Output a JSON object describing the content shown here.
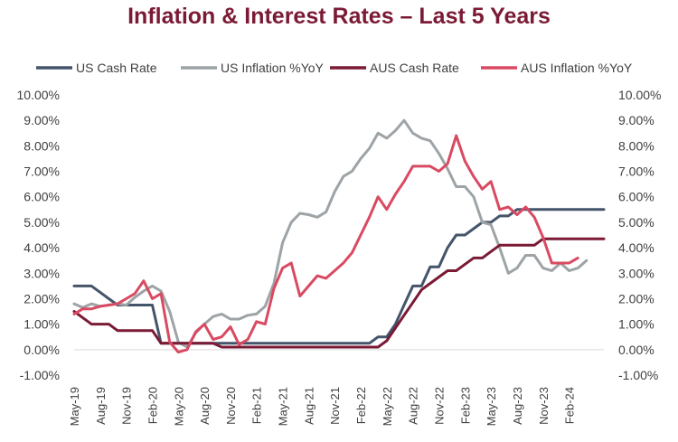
{
  "colors": {
    "title": "#7b1a35",
    "us_cash": "#44546a",
    "us_infl": "#9da3a6",
    "aus_cash": "#7b1a35",
    "aus_infl": "#d94a62",
    "grid": "#d9d9d9",
    "text": "#404040"
  },
  "chart_data": {
    "type": "line",
    "title": "Inflation & Interest Rates – Last 5 Years",
    "ylim": [
      -1,
      10
    ],
    "y_ticks": [
      "-1.00%",
      "0.00%",
      "1.00%",
      "2.00%",
      "3.00%",
      "4.00%",
      "5.00%",
      "6.00%",
      "7.00%",
      "8.00%",
      "9.00%",
      "10.00%"
    ],
    "x_ticks": [
      "May-19",
      "Aug-19",
      "Nov-19",
      "Feb-20",
      "May-20",
      "Aug-20",
      "Nov-20",
      "Feb-21",
      "May-21",
      "Aug-21",
      "Nov-21",
      "Feb-22",
      "May-22",
      "Aug-22",
      "Nov-22",
      "Feb-23",
      "May-23",
      "Aug-23",
      "Nov-23",
      "Feb-24"
    ],
    "x_tick_index": [
      0,
      3,
      6,
      9,
      12,
      15,
      18,
      21,
      24,
      27,
      30,
      33,
      36,
      39,
      42,
      45,
      48,
      51,
      54,
      57
    ],
    "series": [
      {
        "name": "US Cash Rate",
        "color_key": "us_cash",
        "values": [
          2.5,
          2.5,
          2.5,
          2.25,
          2.0,
          1.75,
          1.75,
          1.75,
          1.75,
          1.75,
          0.25,
          0.25,
          0.25,
          0.25,
          0.25,
          0.25,
          0.25,
          0.25,
          0.25,
          0.25,
          0.25,
          0.25,
          0.25,
          0.25,
          0.25,
          0.25,
          0.25,
          0.25,
          0.25,
          0.25,
          0.25,
          0.25,
          0.25,
          0.25,
          0.25,
          0.5,
          0.5,
          1.0,
          1.75,
          2.5,
          2.5,
          3.25,
          3.25,
          4.0,
          4.5,
          4.5,
          4.75,
          5.0,
          5.0,
          5.25,
          5.25,
          5.5,
          5.5,
          5.5,
          5.5,
          5.5,
          5.5,
          5.5,
          5.5,
          5.5,
          5.5,
          5.5
        ]
      },
      {
        "name": "US Inflation %YoY",
        "color_key": "us_infl",
        "values": [
          1.8,
          1.65,
          1.8,
          1.7,
          1.75,
          1.8,
          1.75,
          2.05,
          2.3,
          2.5,
          2.3,
          1.5,
          0.3,
          0.1,
          0.65,
          1.0,
          1.3,
          1.4,
          1.2,
          1.2,
          1.35,
          1.4,
          1.7,
          2.6,
          4.2,
          5.0,
          5.35,
          5.3,
          5.2,
          5.4,
          6.2,
          6.8,
          7.0,
          7.5,
          7.9,
          8.5,
          8.3,
          8.6,
          9.0,
          8.5,
          8.3,
          8.2,
          7.7,
          7.1,
          6.4,
          6.4,
          6.0,
          5.0,
          4.9,
          4.0,
          3.0,
          3.2,
          3.7,
          3.7,
          3.2,
          3.1,
          3.4,
          3.1,
          3.2,
          3.5
        ]
      },
      {
        "name": "AUS Cash Rate",
        "color_key": "aus_cash",
        "values": [
          1.5,
          1.25,
          1.0,
          1.0,
          1.0,
          0.75,
          0.75,
          0.75,
          0.75,
          0.75,
          0.25,
          0.25,
          0.25,
          0.25,
          0.25,
          0.25,
          0.25,
          0.1,
          0.1,
          0.1,
          0.1,
          0.1,
          0.1,
          0.1,
          0.1,
          0.1,
          0.1,
          0.1,
          0.1,
          0.1,
          0.1,
          0.1,
          0.1,
          0.1,
          0.1,
          0.1,
          0.35,
          0.85,
          1.35,
          1.85,
          2.35,
          2.6,
          2.85,
          3.1,
          3.1,
          3.35,
          3.6,
          3.6,
          3.85,
          4.1,
          4.1,
          4.1,
          4.1,
          4.1,
          4.35,
          4.35,
          4.35,
          4.35,
          4.35,
          4.35,
          4.35,
          4.35
        ]
      },
      {
        "name": "AUS Inflation %YoY",
        "color_key": "aus_infl",
        "values": [
          1.4,
          1.6,
          1.6,
          1.7,
          1.75,
          1.8,
          2.0,
          2.2,
          2.7,
          2.0,
          2.2,
          0.3,
          -0.1,
          0.0,
          0.7,
          1.0,
          0.4,
          0.5,
          0.9,
          0.2,
          0.4,
          1.1,
          1.0,
          2.4,
          3.2,
          3.4,
          2.1,
          2.5,
          2.9,
          2.8,
          3.1,
          3.4,
          3.8,
          4.5,
          5.2,
          6.0,
          5.5,
          6.1,
          6.6,
          7.2,
          7.2,
          7.2,
          7.0,
          7.3,
          8.4,
          7.4,
          6.8,
          6.3,
          6.6,
          5.5,
          5.6,
          5.3,
          5.6,
          5.2,
          4.4,
          3.4,
          3.4,
          3.4,
          3.6
        ]
      }
    ]
  }
}
